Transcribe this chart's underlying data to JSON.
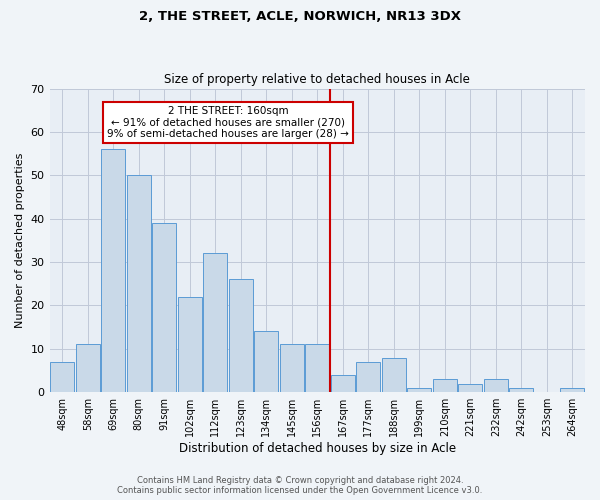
{
  "title1": "2, THE STREET, ACLE, NORWICH, NR13 3DX",
  "title2": "Size of property relative to detached houses in Acle",
  "xlabel": "Distribution of detached houses by size in Acle",
  "ylabel": "Number of detached properties",
  "categories": [
    "48sqm",
    "58sqm",
    "69sqm",
    "80sqm",
    "91sqm",
    "102sqm",
    "112sqm",
    "123sqm",
    "134sqm",
    "145sqm",
    "156sqm",
    "167sqm",
    "177sqm",
    "188sqm",
    "199sqm",
    "210sqm",
    "221sqm",
    "232sqm",
    "242sqm",
    "253sqm",
    "264sqm"
  ],
  "values": [
    7,
    11,
    56,
    50,
    39,
    22,
    32,
    26,
    14,
    11,
    11,
    4,
    7,
    8,
    1,
    3,
    2,
    3,
    1,
    0,
    1
  ],
  "bar_color": "#c9d9e8",
  "bar_edge_color": "#5b9bd5",
  "vline_x": 10.5,
  "vline_color": "#cc0000",
  "annotation_text": "2 THE STREET: 160sqm\n← 91% of detached houses are smaller (270)\n9% of semi-detached houses are larger (28) →",
  "annotation_box_color": "#ffffff",
  "annotation_box_edge": "#cc0000",
  "ylim": [
    0,
    70
  ],
  "yticks": [
    0,
    10,
    20,
    30,
    40,
    50,
    60,
    70
  ],
  "grid_color": "#c0c8d8",
  "bg_color": "#e8eef5",
  "fig_bg_color": "#f0f4f8",
  "footer1": "Contains HM Land Registry data © Crown copyright and database right 2024.",
  "footer2": "Contains public sector information licensed under the Open Government Licence v3.0."
}
